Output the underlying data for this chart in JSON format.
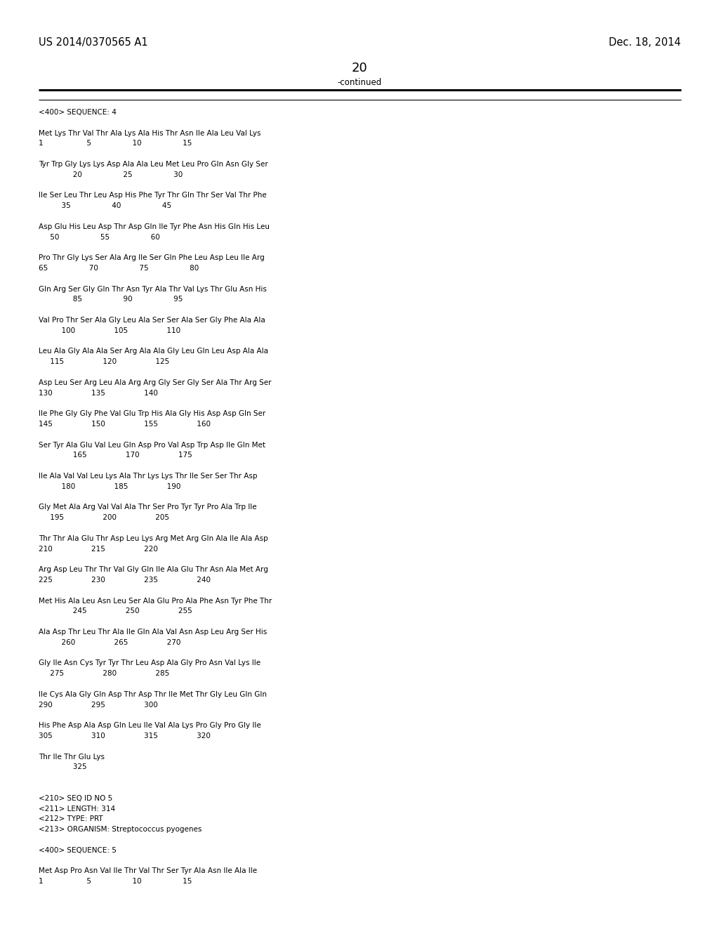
{
  "header_left": "US 2014/0370565 A1",
  "header_right": "Dec. 18, 2014",
  "page_number": "20",
  "continued_label": "-continued",
  "background_color": "#ffffff",
  "text_color": "#000000",
  "body_lines": [
    "<400> SEQUENCE: 4",
    "",
    "Met Lys Thr Val Thr Ala Lys Ala His Thr Asn Ile Ala Leu Val Lys",
    "1                   5                  10                  15",
    "",
    "Tyr Trp Gly Lys Lys Asp Ala Ala Leu Met Leu Pro Gln Asn Gly Ser",
    "               20                  25                  30",
    "",
    "Ile Ser Leu Thr Leu Asp His Phe Tyr Thr Gln Thr Ser Val Thr Phe",
    "          35                  40                  45",
    "",
    "Asp Glu His Leu Asp Thr Asp Gln Ile Tyr Phe Asn His Gln His Leu",
    "     50                  55                  60",
    "",
    "Pro Thr Gly Lys Ser Ala Arg Ile Ser Gln Phe Leu Asp Leu Ile Arg",
    "65                  70                  75                  80",
    "",
    "Gln Arg Ser Gly Gln Thr Asn Tyr Ala Thr Val Lys Thr Glu Asn His",
    "               85                  90                  95",
    "",
    "Val Pro Thr Ser Ala Gly Leu Ala Ser Ser Ala Ser Gly Phe Ala Ala",
    "          100                 105                 110",
    "",
    "Leu Ala Gly Ala Ala Ser Arg Ala Ala Gly Leu Gln Leu Asp Ala Ala",
    "     115                 120                 125",
    "",
    "Asp Leu Ser Arg Leu Ala Arg Arg Gly Ser Gly Ser Ala Thr Arg Ser",
    "130                 135                 140",
    "",
    "Ile Phe Gly Gly Phe Val Glu Trp His Ala Gly His Asp Asp Gln Ser",
    "145                 150                 155                 160",
    "",
    "Ser Tyr Ala Glu Val Leu Gln Asp Pro Val Asp Trp Asp Ile Gln Met",
    "               165                 170                 175",
    "",
    "Ile Ala Val Val Leu Lys Ala Thr Lys Lys Thr Ile Ser Ser Thr Asp",
    "          180                 185                 190",
    "",
    "Gly Met Ala Arg Val Val Ala Thr Ser Pro Tyr Tyr Pro Ala Trp Ile",
    "     195                 200                 205",
    "",
    "Thr Thr Ala Glu Thr Asp Leu Lys Arg Met Arg Gln Ala Ile Ala Asp",
    "210                 215                 220",
    "",
    "Arg Asp Leu Thr Thr Val Gly Gln Ile Ala Glu Thr Asn Ala Met Arg",
    "225                 230                 235                 240",
    "",
    "Met His Ala Leu Asn Leu Ser Ala Glu Pro Ala Phe Asn Tyr Phe Thr",
    "               245                 250                 255",
    "",
    "Ala Asp Thr Leu Thr Ala Ile Gln Ala Val Asn Asp Leu Arg Ser His",
    "          260                 265                 270",
    "",
    "Gly Ile Asn Cys Tyr Tyr Thr Leu Asp Ala Gly Pro Asn Val Lys Ile",
    "     275                 280                 285",
    "",
    "Ile Cys Ala Gly Gln Asp Thr Asp Thr Ile Met Thr Gly Leu Gln Gln",
    "290                 295                 300",
    "",
    "His Phe Asp Ala Asp Gln Leu Ile Val Ala Lys Pro Gly Pro Gly Ile",
    "305                 310                 315                 320",
    "",
    "Thr Ile Thr Glu Lys",
    "               325",
    "",
    "",
    "<210> SEQ ID NO 5",
    "<211> LENGTH: 314",
    "<212> TYPE: PRT",
    "<213> ORGANISM: Streptococcus pyogenes",
    "",
    "<400> SEQUENCE: 5",
    "",
    "Met Asp Pro Asn Val Ile Thr Val Thr Ser Tyr Ala Asn Ile Ala Ile",
    "1                   5                  10                  15"
  ]
}
